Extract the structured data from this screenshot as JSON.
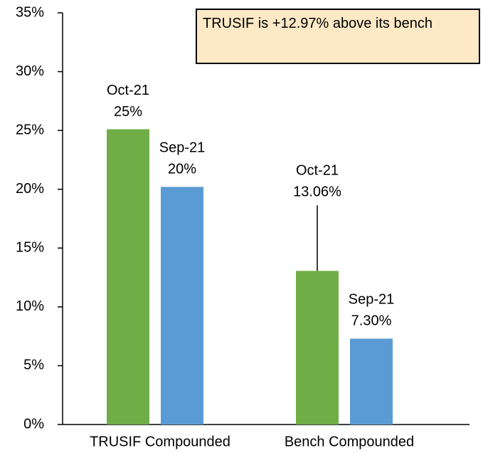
{
  "chart_data": {
    "type": "bar",
    "categories": [
      "TRUSIF Compounded",
      "Bench Compounded"
    ],
    "series": [
      {
        "name": "Oct-21",
        "color": "#70ad47",
        "values": [
          25.1,
          13.06
        ],
        "value_labels": [
          "25%",
          "13.06%"
        ]
      },
      {
        "name": "Sep-21",
        "color": "#5b9bd5",
        "values": [
          20.2,
          7.3
        ],
        "value_labels": [
          "20%",
          "7.30%"
        ]
      }
    ],
    "ylim": [
      0,
      35
    ],
    "yticks": [
      {
        "value": 0,
        "label": "0%"
      },
      {
        "value": 5,
        "label": "5%"
      },
      {
        "value": 10,
        "label": "10%"
      },
      {
        "value": 15,
        "label": "15%"
      },
      {
        "value": 20,
        "label": "20%"
      },
      {
        "value": 25,
        "label": "25%"
      },
      {
        "value": 30,
        "label": "30%"
      },
      {
        "value": 35,
        "label": "35%"
      }
    ],
    "annotation": "TRUSIF is +12.97% above its bench",
    "grid": false
  }
}
